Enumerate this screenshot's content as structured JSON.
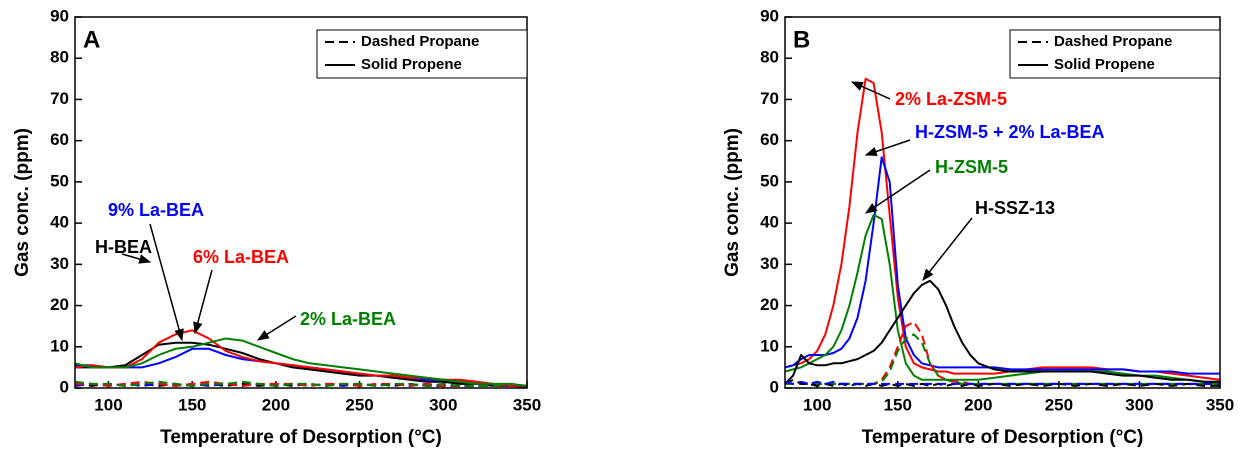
{
  "chart_data": [
    {
      "type": "line",
      "panel_label": "A",
      "x_label": "Temperature of Desorption (°C)",
      "y_label": "Gas conc. (ppm)",
      "xlim": [
        80,
        350
      ],
      "ylim": [
        0,
        90
      ],
      "xticks": [
        100,
        150,
        200,
        250,
        300,
        350
      ],
      "yticks": [
        0,
        10,
        20,
        30,
        40,
        50,
        60,
        70,
        80,
        90
      ],
      "legend": [
        {
          "label": "Dashed Propane",
          "dash": "dashed"
        },
        {
          "label": "Solid Propene",
          "dash": "solid"
        }
      ],
      "legend_position": "upper right",
      "x": [
        80,
        90,
        100,
        110,
        120,
        130,
        140,
        150,
        160,
        170,
        180,
        190,
        200,
        210,
        220,
        230,
        240,
        250,
        260,
        270,
        280,
        290,
        300,
        310,
        320,
        330,
        340,
        350
      ],
      "series": [
        {
          "name": "H-BEA",
          "color": "#000000",
          "dash": "solid",
          "values": [
            5,
            5,
            5,
            5.5,
            8,
            10.5,
            11,
            11,
            10.5,
            9.5,
            8.5,
            7,
            6,
            5,
            4.5,
            4,
            3.5,
            3,
            3,
            2.5,
            2,
            1.5,
            1.5,
            1,
            1,
            0.5,
            0.5,
            0.3
          ]
        },
        {
          "name": "9% La-BEA",
          "color": "#0000ff",
          "dash": "solid",
          "values": [
            5.5,
            5.5,
            5,
            5,
            5,
            6,
            7.5,
            9.5,
            9.5,
            8,
            7,
            6.5,
            6,
            5.5,
            5,
            4.5,
            4,
            3.5,
            3,
            3,
            2.5,
            2,
            2,
            1.5,
            1,
            1,
            0.5,
            0.5
          ]
        },
        {
          "name": "6% La-BEA",
          "color": "#ff0000",
          "dash": "solid",
          "values": [
            5,
            5.5,
            5,
            5,
            7,
            11,
            13,
            14,
            12,
            9,
            7.5,
            6.5,
            6,
            5.5,
            5,
            4.5,
            4,
            3.5,
            3,
            3,
            2.5,
            2.5,
            2,
            2,
            1.5,
            1,
            0.5,
            0.5
          ]
        },
        {
          "name": "2% La-BEA",
          "color": "#008000",
          "dash": "solid",
          "values": [
            6,
            5,
            5,
            5,
            6,
            8,
            9.5,
            10,
            11,
            12,
            11.5,
            10,
            8.5,
            7,
            6,
            5.5,
            5,
            4.5,
            4,
            3.5,
            3,
            2.5,
            2,
            1.5,
            1,
            1,
            1,
            0.5
          ]
        },
        {
          "color": "#000000",
          "dash": "dashed",
          "values": [
            1,
            0.5,
            1,
            0.5,
            1,
            0.5,
            1,
            0.5,
            1,
            0.5,
            1,
            0.5,
            1,
            0.5,
            1,
            0.5,
            1,
            0.5,
            1,
            0.5,
            1,
            0.5,
            0.5,
            0.5,
            0.5,
            0.5,
            0.5,
            0.5
          ]
        },
        {
          "color": "#0000ff",
          "dash": "dashed",
          "values": [
            0.5,
            1,
            0.5,
            1,
            0.5,
            1,
            0.5,
            1,
            0.5,
            1,
            0.5,
            1,
            0.5,
            1,
            0.5,
            1,
            0.5,
            1,
            0.5,
            1,
            0.5,
            1,
            0.5,
            0.5,
            0.5,
            0.5,
            0.5,
            0.5
          ]
        },
        {
          "color": "#ff0000",
          "dash": "dashed",
          "values": [
            1,
            1,
            0.5,
            1,
            1.5,
            1,
            0.5,
            1,
            1.5,
            1,
            0.5,
            1,
            1,
            1,
            0.5,
            1,
            1,
            0.5,
            1,
            1,
            0.5,
            1,
            0.5,
            0.5,
            0.5,
            0.5,
            0.5,
            0.5
          ]
        },
        {
          "color": "#008000",
          "dash": "dashed",
          "values": [
            1.5,
            1,
            1,
            0.5,
            1,
            1.5,
            1,
            0.5,
            1,
            1,
            1.5,
            1,
            0.5,
            1,
            1,
            0.5,
            1,
            1,
            0.5,
            1,
            1,
            0.5,
            1,
            0.5,
            0.5,
            0.5,
            1,
            0.5
          ]
        }
      ]
    },
    {
      "type": "line",
      "panel_label": "B",
      "x_label": "Temperature of Desorption (°C)",
      "y_label": "Gas conc. (ppm)",
      "xlim": [
        80,
        350
      ],
      "ylim": [
        0,
        90
      ],
      "xticks": [
        100,
        150,
        200,
        250,
        300,
        350
      ],
      "yticks": [
        0,
        10,
        20,
        30,
        40,
        50,
        60,
        70,
        80,
        90
      ],
      "legend": [
        {
          "label": "Dashed Propane",
          "dash": "dashed"
        },
        {
          "label": "Solid Propene",
          "dash": "solid"
        }
      ],
      "legend_position": "upper right",
      "x": [
        80,
        85,
        90,
        95,
        100,
        105,
        110,
        115,
        120,
        125,
        130,
        135,
        140,
        145,
        150,
        155,
        160,
        165,
        170,
        175,
        180,
        185,
        190,
        195,
        200,
        210,
        220,
        230,
        240,
        250,
        260,
        270,
        280,
        290,
        300,
        310,
        320,
        330,
        340,
        350
      ],
      "series": [
        {
          "name": "2% La-ZSM-5",
          "color": "#ff0000",
          "dash": "solid",
          "values": [
            5,
            5.5,
            6,
            7,
            9,
            13,
            20,
            30,
            44,
            62,
            75,
            74,
            62,
            42,
            22,
            10,
            6,
            5,
            4.5,
            4,
            4,
            3.5,
            3.5,
            3.5,
            3.5,
            3.5,
            4,
            4.5,
            5,
            5,
            5,
            5,
            4.5,
            4.5,
            4,
            4,
            3.5,
            3,
            2.5,
            2
          ]
        },
        {
          "name": "H-ZSM-5 + 2% La-BEA",
          "color": "#0000ff",
          "dash": "solid",
          "values": [
            5,
            5.5,
            7,
            8,
            8,
            8,
            8.5,
            9.5,
            12,
            17,
            26,
            40,
            56,
            50,
            25,
            12,
            8,
            6,
            5.5,
            5,
            5,
            5,
            5,
            5,
            5,
            5,
            4.5,
            4.5,
            4.5,
            4.5,
            4.5,
            4.5,
            4.5,
            4.5,
            4,
            4,
            4,
            3.5,
            3.5,
            3.5
          ]
        },
        {
          "name": "H-ZSM-5",
          "color": "#008000",
          "dash": "solid",
          "values": [
            4,
            4.5,
            5,
            6,
            7,
            8,
            10,
            14,
            20,
            28,
            37,
            42,
            41,
            30,
            14,
            6,
            3,
            2,
            2,
            2,
            2,
            2,
            2,
            2,
            2,
            2.5,
            3,
            3.5,
            4,
            4,
            4,
            4,
            4,
            3.5,
            3,
            3,
            2.5,
            2,
            1.5,
            1
          ]
        },
        {
          "name": "H-SSZ-13",
          "color": "#000000",
          "dash": "solid",
          "values": [
            1,
            3,
            8,
            6,
            5.5,
            5.5,
            6,
            6,
            6.5,
            7,
            8,
            9,
            11,
            14,
            17,
            20,
            23,
            25,
            26,
            24,
            20,
            15,
            11,
            8,
            6,
            4.5,
            4,
            4,
            4,
            4,
            4,
            4,
            3.5,
            3,
            3,
            2.5,
            2,
            2,
            1.5,
            1.5
          ]
        },
        {
          "color": "#ff0000",
          "dash": "dashed",
          "values": [
            1,
            1,
            1,
            1,
            1,
            1,
            1,
            1,
            1,
            1,
            1,
            1,
            2,
            5,
            10,
            15,
            16,
            13,
            6,
            3,
            2,
            1.5,
            1.5,
            1,
            1,
            1,
            1,
            1,
            1,
            1,
            1,
            1,
            1,
            1,
            1,
            1,
            1,
            1,
            1,
            1
          ]
        },
        {
          "color": "#008000",
          "dash": "dashed",
          "values": [
            1,
            1,
            1,
            1,
            1,
            1,
            1,
            1,
            1,
            1,
            1,
            1,
            1.5,
            4,
            9,
            12,
            13,
            11,
            6,
            3,
            2,
            1.5,
            1,
            1,
            1,
            1,
            1,
            1,
            1,
            1,
            1,
            1,
            1,
            1,
            1,
            1,
            1,
            1,
            1,
            1
          ]
        },
        {
          "color": "#000000",
          "dash": "dashed",
          "values": [
            1,
            2,
            1,
            1,
            0.5,
            1,
            0.5,
            1,
            0.5,
            1,
            0.5,
            1,
            0.5,
            1,
            0.5,
            1,
            0.5,
            1,
            0.5,
            1,
            0.5,
            1,
            0.5,
            1,
            0.5,
            1,
            0.5,
            1,
            0.5,
            1,
            0.5,
            1,
            0.5,
            1,
            0.5,
            1,
            0.5,
            1,
            0.5,
            0.5
          ]
        },
        {
          "color": "#0000ff",
          "dash": "dashed",
          "values": [
            1.5,
            1,
            1.5,
            1,
            1.5,
            1,
            1.5,
            1,
            1,
            1,
            1,
            1,
            1,
            1,
            1,
            1,
            1,
            1,
            1,
            1,
            1,
            1,
            1,
            1,
            1,
            1,
            1,
            1,
            1,
            1,
            1,
            1,
            1,
            1,
            1,
            1,
            1,
            1,
            1,
            1
          ]
        }
      ]
    }
  ]
}
